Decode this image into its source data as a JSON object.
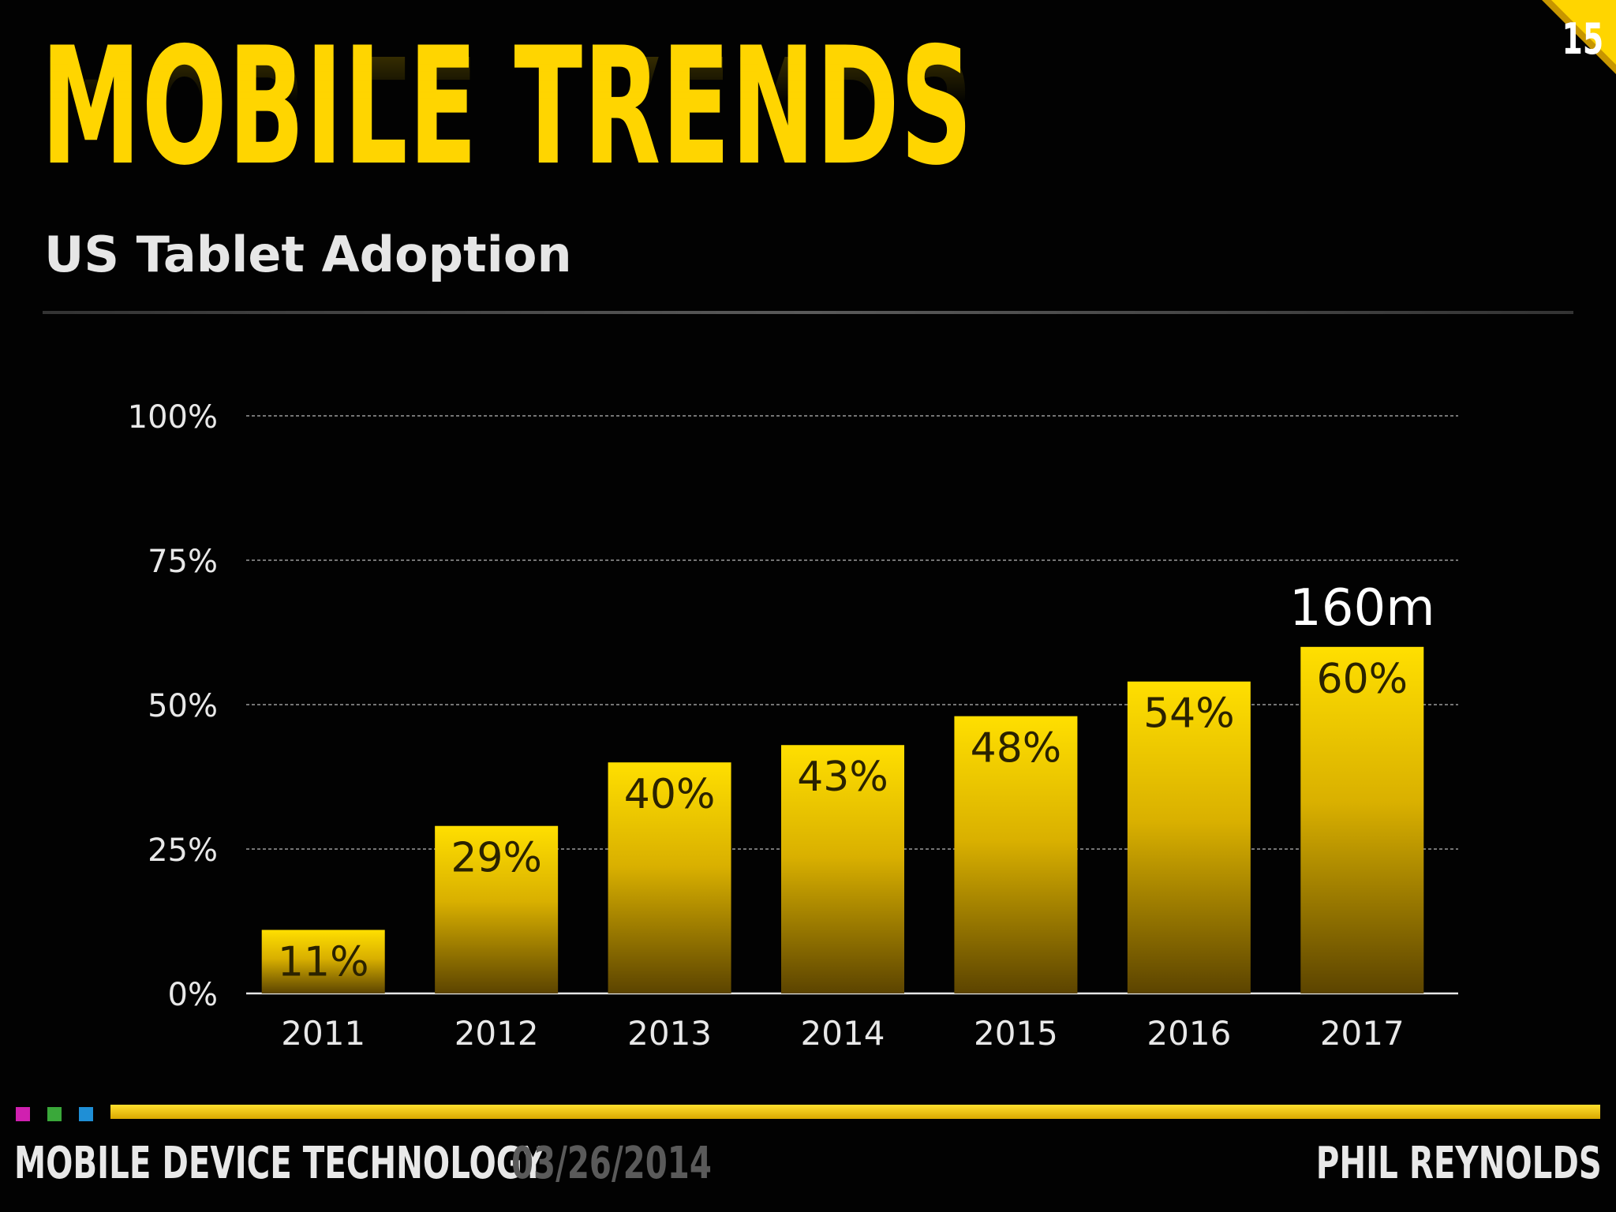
{
  "slide": {
    "title": "MOBILE TRENDS",
    "subtitle": "US Tablet Adoption",
    "page_number": "15",
    "accent_color": "#ffd500"
  },
  "footer": {
    "course": "MOBILE DEVICE TECHNOLOGY",
    "date": "03/26/2014",
    "author": "PHIL REYNOLDS",
    "square_colors": [
      "#d020b0",
      "#3aa83a",
      "#1f8fd6"
    ]
  },
  "chart_data": {
    "type": "bar",
    "categories": [
      "2011",
      "2012",
      "2013",
      "2014",
      "2015",
      "2016",
      "2017"
    ],
    "values": [
      11,
      29,
      40,
      43,
      48,
      54,
      60
    ],
    "data_labels": [
      "11%",
      "29%",
      "40%",
      "43%",
      "48%",
      "54%",
      "60%"
    ],
    "yticks": [
      "0%",
      "25%",
      "50%",
      "75%",
      "100%"
    ],
    "ylim": [
      0,
      100
    ],
    "grid": true,
    "annotation": {
      "category": "2017",
      "text": "160m"
    }
  }
}
